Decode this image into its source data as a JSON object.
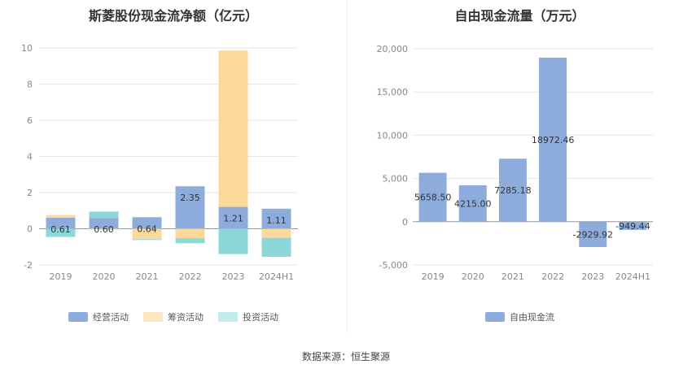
{
  "source_text": "数据来源：恒生聚源",
  "chart_data": [
    {
      "type": "bar",
      "stacked": true,
      "title": "斯菱股份现金流净额（亿元）",
      "categories": [
        "2019",
        "2020",
        "2021",
        "2022",
        "2023",
        "2024H1"
      ],
      "ylim": [
        -2,
        10
      ],
      "yticks": [
        "10",
        "8",
        "6",
        "4",
        "2",
        "0",
        "-2"
      ],
      "grid": true,
      "legend_position": "bottom",
      "series": [
        {
          "name": "经营活动",
          "color": "#8eacdb",
          "values": [
            0.61,
            0.6,
            0.64,
            2.35,
            1.21,
            1.11
          ],
          "labels": [
            "0.61",
            "0.60",
            "0.64",
            "2.35",
            "1.21",
            "1.11"
          ]
        },
        {
          "name": "筹资活动",
          "color": "#fdd89b",
          "values": [
            0.15,
            -0.05,
            -0.57,
            -0.53,
            8.65,
            -0.5
          ],
          "labels": [
            "",
            "",
            "",
            "",
            "",
            ""
          ]
        },
        {
          "name": "投资活动",
          "color": "#8dd7d9",
          "values": [
            -0.45,
            0.35,
            -0.05,
            -0.27,
            -1.4,
            -1.05
          ],
          "labels": [
            "",
            "",
            "",
            "",
            "",
            ""
          ]
        }
      ]
    },
    {
      "type": "bar",
      "title": "自由现金流量（万元）",
      "categories": [
        "2019",
        "2020",
        "2021",
        "2022",
        "2023",
        "2024H1"
      ],
      "ylim": [
        -5000,
        20000
      ],
      "yticks": [
        "20,000",
        "15,000",
        "10,000",
        "5,000",
        "0",
        "-5,000"
      ],
      "grid": true,
      "legend_position": "bottom",
      "series": [
        {
          "name": "自由现金流",
          "color": "#8eacdb",
          "values": [
            5658.5,
            4215.0,
            7285.18,
            18972.46,
            -2929.92,
            -949.44
          ],
          "labels": [
            "5658.50",
            "4215.00",
            "7285.18",
            "18972.46",
            "-2929.92",
            "-949.44"
          ]
        }
      ]
    }
  ]
}
